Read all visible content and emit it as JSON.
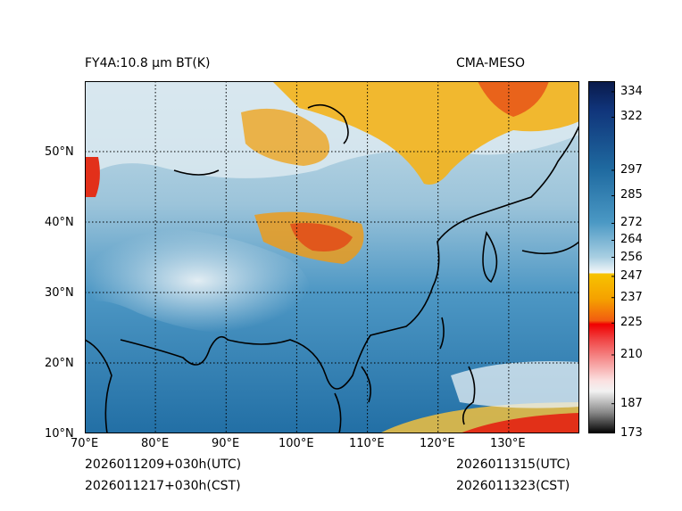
{
  "header": {
    "left_title": "FY4A:10.8 µm BT(K)",
    "right_title": "CMA-MESO"
  },
  "footer": {
    "init_utc": "2026011209+030h(UTC)",
    "init_cst": "2026011217+030h(CST)",
    "valid_utc": "2026011315(UTC)",
    "valid_cst": "2026011323(CST)"
  },
  "map": {
    "lon_labels": [
      "70°E",
      "80°E",
      "90°E",
      "100°E",
      "110°E",
      "120°E",
      "130°E"
    ],
    "lat_labels": [
      "50°N",
      "40°N",
      "30°N",
      "20°N",
      "10°N"
    ],
    "lon_range": [
      70,
      140
    ],
    "lat_range": [
      10,
      60
    ]
  },
  "colorbar": {
    "ticks": [
      "334",
      "322",
      "297",
      "285",
      "272",
      "264",
      "256",
      "247",
      "237",
      "225",
      "210",
      "187",
      "173"
    ],
    "tick_values": [
      334,
      322,
      297,
      285,
      272,
      264,
      256,
      247,
      237,
      225,
      210,
      187,
      173
    ],
    "range": [
      173,
      339
    ]
  },
  "colors": {
    "land_blue": "#3f8fbf",
    "sea_blue": "#1f6fa3",
    "cloud_white": "#e6f0f6",
    "cold_orange": "#f5a20a",
    "very_cold_red": "#e0300e"
  }
}
